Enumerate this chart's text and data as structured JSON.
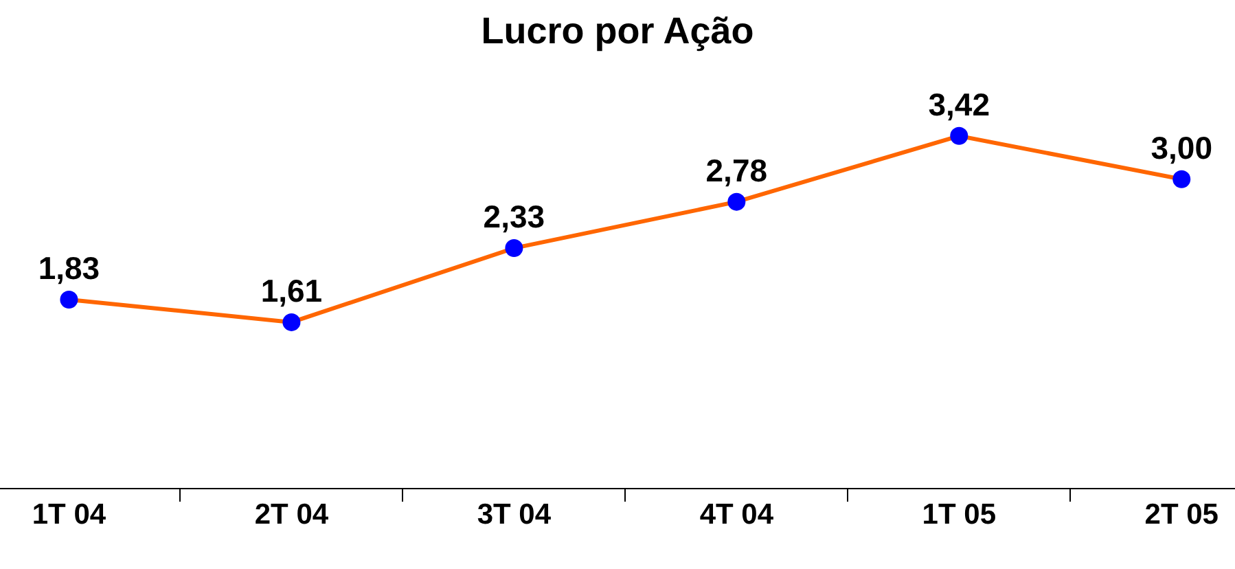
{
  "chart_data": {
    "type": "line",
    "title": "Lucro por Ação",
    "categories": [
      "1T 04",
      "2T 04",
      "3T 04",
      "4T 04",
      "1T 05",
      "2T 05"
    ],
    "series": [
      {
        "color": "#ff6600",
        "colors": [
          "#0000ff",
          "#0000ff",
          "#0000ff",
          "#0000ff",
          "#0000ff",
          "#0000ff"
        ],
        "values": [
          1.83,
          1.61,
          2.33,
          2.78,
          3.42,
          3.0
        ],
        "value_labels": [
          "1,83",
          "1,61",
          "2,33",
          "2,78",
          "3,42",
          "3,00"
        ]
      }
    ],
    "marker": "circle",
    "line_style": "solid",
    "legend": false,
    "tick_labels": "x"
  }
}
